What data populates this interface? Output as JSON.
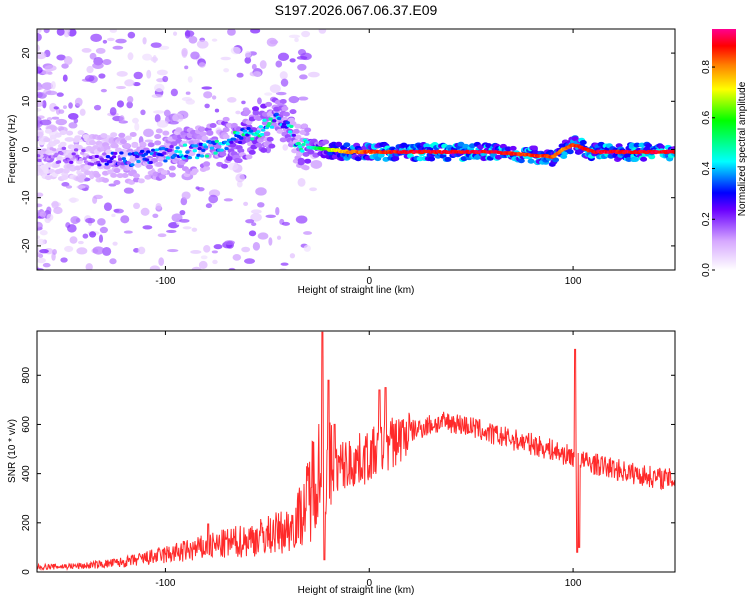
{
  "title": "S197.2026.067.06.37.E09",
  "chart_data": [
    {
      "type": "heatmap",
      "name": "spectrogram",
      "xlabel": "Height of straight line (km)",
      "ylabel": "Frequency (Hz)",
      "xlim": [
        -163,
        150
      ],
      "ylim": [
        -25,
        25
      ],
      "xticks": [
        -100,
        0,
        100
      ],
      "xtick_labels": [
        "-100",
        "0",
        "100"
      ],
      "yticks": [
        20,
        10,
        0,
        -10,
        -20
      ],
      "ytick_labels": [
        "20",
        "10",
        "0",
        "-10",
        "-20"
      ],
      "ridge": {
        "description_points_x": [
          -160,
          -140,
          -120,
          -100,
          -80,
          -60,
          -50,
          -45,
          -40,
          -35,
          -30,
          -20,
          -10,
          0,
          20,
          60,
          90,
          95,
          100,
          110,
          150
        ],
        "frequency_y": [
          -1,
          -1.5,
          -2,
          -1,
          0,
          3,
          5,
          6.5,
          5,
          1,
          0.5,
          0,
          -0.5,
          -0.5,
          -0.5,
          -0.5,
          -1.5,
          0,
          1,
          -0.5,
          -0.5
        ],
        "amplitude": [
          0.15,
          0.2,
          0.3,
          0.35,
          0.4,
          0.45,
          0.45,
          0.4,
          0.4,
          0.4,
          0.45,
          0.7,
          0.85,
          0.9,
          0.95,
          0.95,
          0.9,
          0.85,
          0.9,
          0.95,
          0.95
        ]
      },
      "colorbar": {
        "label": "Normalized spectral amplitude",
        "range": [
          0,
          0.95
        ],
        "ticks": [
          0.0,
          0.2,
          0.4,
          0.6,
          0.8
        ],
        "tick_labels": [
          "0.0",
          "0.2",
          "0.4",
          "0.6",
          "0.8"
        ],
        "colors": [
          "#ffffff",
          "#8000ff",
          "#0000ff",
          "#00ffff",
          "#00ff00",
          "#ffff00",
          "#ff8000",
          "#ff0000",
          "#ff0080"
        ]
      }
    },
    {
      "type": "line",
      "name": "snr",
      "xlabel": "Height of straight line (km)",
      "ylabel": "SNR (10 * v/v)",
      "xlim": [
        -163,
        150
      ],
      "ylim": [
        0,
        980
      ],
      "xticks": [
        -100,
        0,
        100
      ],
      "xtick_labels": [
        "-100",
        "0",
        "100"
      ],
      "yticks": [
        0,
        200,
        400,
        600,
        800
      ],
      "ytick_labels": [
        "0",
        "200",
        "400",
        "600",
        "800"
      ],
      "color": "#ff2a2a",
      "envelope": {
        "x": [
          -163,
          -140,
          -120,
          -100,
          -80,
          -60,
          -40,
          -32,
          -28,
          -25,
          -22,
          -18,
          -10,
          0,
          10,
          20,
          30,
          40,
          50,
          60,
          70,
          80,
          90,
          95,
          100,
          102,
          105,
          110,
          120,
          130,
          140,
          150
        ],
        "y": [
          20,
          25,
          40,
          70,
          100,
          130,
          170,
          250,
          360,
          430,
          380,
          420,
          440,
          470,
          520,
          570,
          600,
          610,
          590,
          560,
          540,
          520,
          495,
          480,
          470,
          470,
          450,
          440,
          420,
          400,
          385,
          375
        ]
      },
      "spikes": [
        {
          "x": -79,
          "y": 195
        },
        {
          "x": -23,
          "y": 975
        },
        {
          "x": -22,
          "y": 50
        },
        {
          "x": -20,
          "y": 780
        },
        {
          "x": -17,
          "y": 600
        },
        {
          "x": 5,
          "y": 740
        },
        {
          "x": 8,
          "y": 750
        },
        {
          "x": 101,
          "y": 905
        },
        {
          "x": 102,
          "y": 80
        },
        {
          "x": 103,
          "y": 100
        }
      ]
    }
  ]
}
